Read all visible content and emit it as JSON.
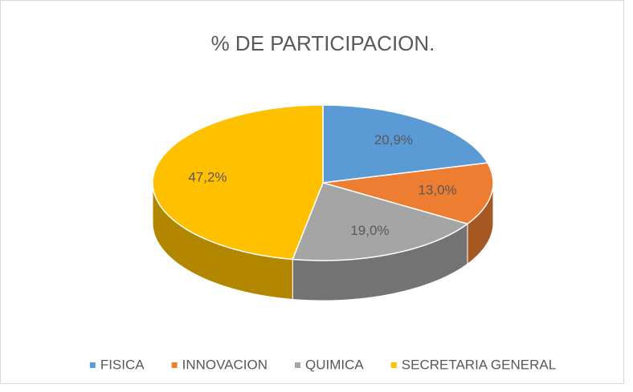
{
  "chart_data": {
    "type": "pie",
    "title": "% DE PARTICIPACION.",
    "categories": [
      "FISICA",
      "INNOVACION",
      "QUIMICA",
      "SECRETARIA GENERAL"
    ],
    "values": [
      20.9,
      13.0,
      19.0,
      47.2
    ],
    "value_labels": [
      "20,9%",
      "13,0%",
      "19,0%",
      "47,2%"
    ],
    "colors": [
      "#5b9bd5",
      "#ed7d31",
      "#a5a5a5",
      "#ffc000"
    ],
    "legend": "bottom"
  }
}
